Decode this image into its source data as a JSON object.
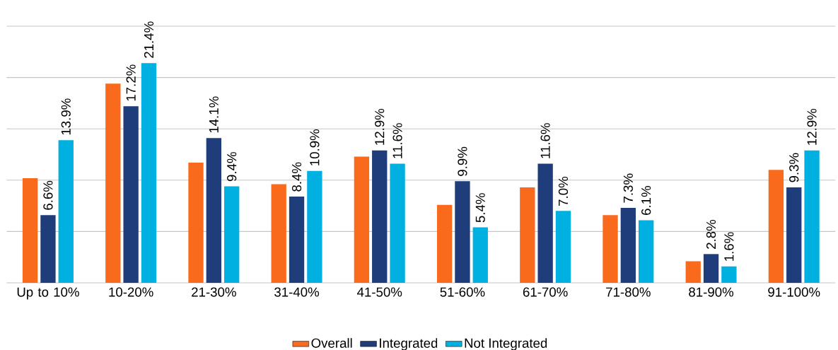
{
  "chart_data": {
    "type": "bar",
    "categories": [
      "Up to 10%",
      "10-20%",
      "21-30%",
      "31-40%",
      "41-50%",
      "51-60%",
      "61-70%",
      "71-80%",
      "81-90%",
      "91-100%"
    ],
    "series": [
      {
        "name": "Overall",
        "color": "#fa6a1c",
        "values": [
          10.2,
          19.4,
          11.7,
          9.6,
          12.3,
          7.6,
          9.3,
          6.6,
          2.1,
          11.0
        ]
      },
      {
        "name": "Integrated",
        "color": "#1f3d7a",
        "values": [
          6.6,
          17.2,
          14.1,
          8.4,
          12.9,
          9.9,
          11.6,
          7.3,
          2.8,
          9.3
        ],
        "value_labels": [
          "6.6%",
          "17.2%",
          "14.1%",
          "8.4%",
          "12.9%",
          "9.9%",
          "11.6%",
          "7.3%",
          "2.8%",
          "9.3%"
        ]
      },
      {
        "name": "Not Integrated",
        "color": "#00b0e0",
        "values": [
          13.9,
          21.4,
          9.4,
          10.9,
          11.6,
          5.4,
          7.0,
          6.1,
          1.6,
          12.9
        ],
        "value_labels": [
          "13.9%",
          "21.4%",
          "9.4%",
          "10.9%",
          "11.6%",
          "5.4%",
          "7.0%",
          "6.1%",
          "1.6%",
          "12.9%"
        ]
      }
    ],
    "ylim": [
      0,
      25
    ],
    "yticks": [
      {
        "value": 0,
        "label": null
      },
      {
        "value": 5,
        "label": null
      },
      {
        "value": 10,
        "label": null
      },
      {
        "value": 15,
        "label": null
      },
      {
        "value": 20,
        "label": null
      },
      {
        "value": 25,
        "label": null
      }
    ],
    "tick_labels": "x",
    "grid": "y",
    "legend": "bottom"
  }
}
